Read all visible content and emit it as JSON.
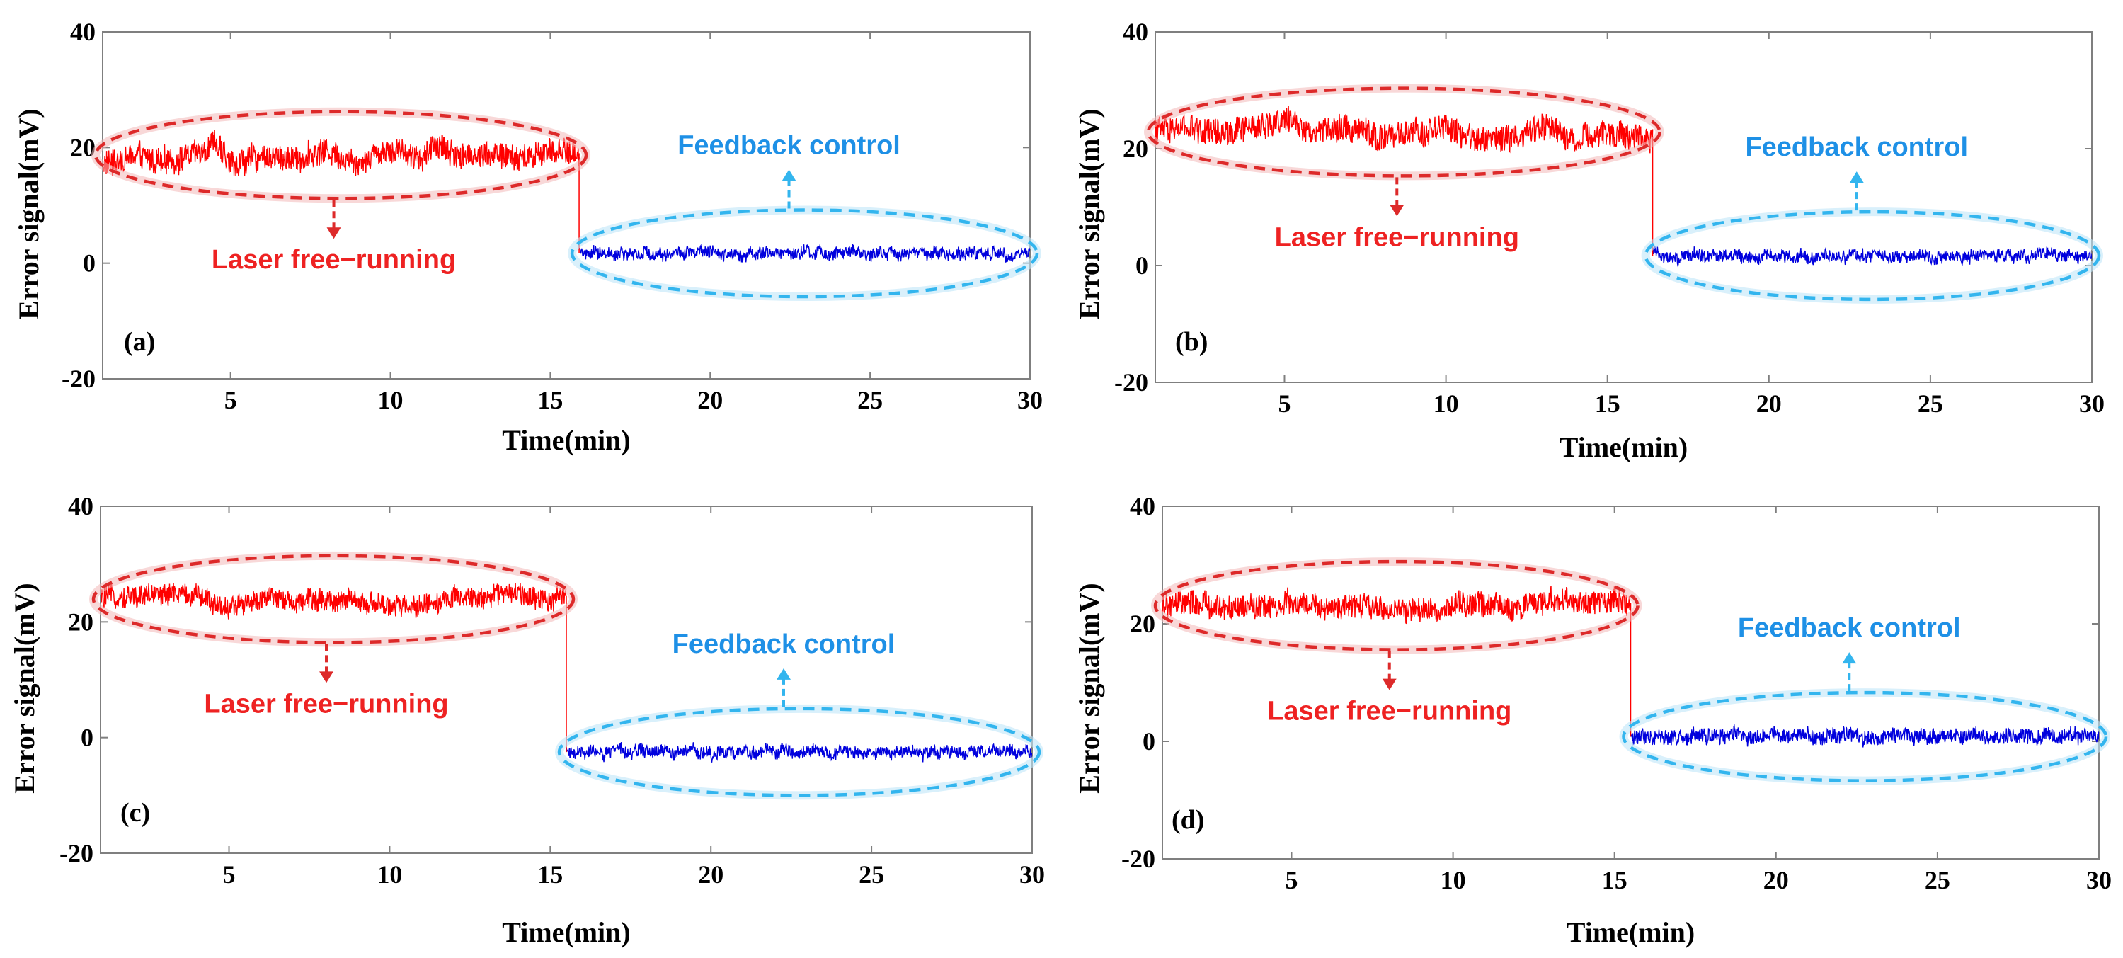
{
  "colors": {
    "free_running_trace": "#ff0000",
    "feedback_trace": "#0000dd",
    "free_running_annotation": "#ee2222",
    "feedback_annotation": "#1e90e6",
    "feedback_ellipse": "#33b5ee",
    "axis": "#7f7f7f"
  },
  "chart_data": [
    {
      "type": "line",
      "panel": "(a)",
      "xlabel": "Time(min)",
      "ylabel": "Error signal(mV)",
      "xlim": [
        1,
        30
      ],
      "ylim": [
        -20,
        40
      ],
      "x_ticks": [
        5,
        10,
        15,
        20,
        25,
        30
      ],
      "y_ticks": [
        -20,
        0,
        20,
        40
      ],
      "x_tick_labels": [
        "5",
        "10",
        "15",
        "20",
        "25",
        "30"
      ],
      "y_tick_labels": [
        "-20",
        "0",
        "20",
        "40"
      ],
      "switch_time": 15.9,
      "series": [
        {
          "name": "Laser free-running",
          "color": "#ff0000",
          "x": [
            1,
            2,
            3,
            4,
            4.5,
            5,
            6,
            7,
            8,
            9,
            10,
            11,
            11.5,
            12,
            13,
            14,
            15,
            15.9
          ],
          "y": [
            17,
            18.5,
            17.5,
            19,
            21,
            17,
            18.5,
            18,
            19.5,
            17.5,
            20,
            18,
            21,
            18.5,
            19,
            18,
            19.5,
            19
          ],
          "noise_amplitude": 2.2
        },
        {
          "name": "Feedback control",
          "color": "#0000dd",
          "x": [
            15.9,
            20,
            25,
            30
          ],
          "y": [
            1.7,
            1.7,
            1.7,
            1.7
          ],
          "noise_amplitude": 1.0
        }
      ],
      "annotations": {
        "free_running_label": "Laser free−running",
        "feedback_label": "Feedback control"
      }
    },
    {
      "type": "line",
      "panel": "(b)",
      "xlabel": "Time(min)",
      "ylabel": "Error signal(mV)",
      "xlim": [
        1,
        30
      ],
      "ylim": [
        -20,
        40
      ],
      "x_ticks": [
        5,
        10,
        15,
        20,
        25,
        30
      ],
      "y_ticks": [
        -20,
        0,
        20,
        40
      ],
      "x_tick_labels": [
        "5",
        "10",
        "15",
        "20",
        "25",
        "30"
      ],
      "y_tick_labels": [
        "-20",
        "0",
        "20",
        "40"
      ],
      "switch_time": 16.4,
      "series": [
        {
          "name": "Laser free-running",
          "color": "#ff0000",
          "x": [
            1,
            2,
            3,
            4,
            5,
            6,
            7,
            8,
            9,
            10,
            11,
            12,
            13,
            14,
            15,
            16.4
          ],
          "y": [
            23,
            23.5,
            22.5,
            23.5,
            25,
            23,
            23.5,
            22,
            22.5,
            23.5,
            21.5,
            22,
            24,
            21.5,
            22.5,
            22
          ],
          "noise_amplitude": 2.2
        },
        {
          "name": "Feedback control",
          "color": "#0000dd",
          "x": [
            16.4,
            20,
            25,
            30
          ],
          "y": [
            1.7,
            1.7,
            1.7,
            1.7
          ],
          "noise_amplitude": 1.0
        }
      ],
      "annotations": {
        "free_running_label": "Laser free−running",
        "feedback_label": "Feedback control"
      }
    },
    {
      "type": "line",
      "panel": "(c)",
      "xlabel": "Time(min)",
      "ylabel": "Error signal(mV)",
      "xlim": [
        1,
        30
      ],
      "ylim": [
        -20,
        40
      ],
      "x_ticks": [
        5,
        10,
        15,
        20,
        25,
        30
      ],
      "y_ticks": [
        -20,
        0,
        20,
        40
      ],
      "x_tick_labels": [
        "5",
        "10",
        "15",
        "20",
        "25",
        "30"
      ],
      "y_tick_labels": [
        "-20",
        "0",
        "20",
        "40"
      ],
      "switch_time": 15.5,
      "series": [
        {
          "name": "Laser free-running",
          "color": "#ff0000",
          "x": [
            1,
            2,
            3,
            4,
            5,
            6,
            7,
            8,
            9,
            10,
            11,
            12,
            13,
            14,
            15,
            15.5
          ],
          "y": [
            24,
            24.5,
            25,
            24.5,
            22.5,
            24,
            23.5,
            24,
            23.5,
            22.5,
            23,
            24,
            24.5,
            25,
            24,
            24.5
          ],
          "noise_amplitude": 1.8
        },
        {
          "name": "Feedback control",
          "color": "#0000dd",
          "x": [
            15.5,
            20,
            25,
            30
          ],
          "y": [
            -2.5,
            -2.5,
            -2.5,
            -2.5
          ],
          "noise_amplitude": 1.0
        }
      ],
      "annotations": {
        "free_running_label": "Laser free−running",
        "feedback_label": "Feedback control"
      }
    },
    {
      "type": "line",
      "panel": "(d)",
      "xlabel": "Time(min)",
      "ylabel": "Error signal(mV)",
      "xlim": [
        1,
        30
      ],
      "ylim": [
        -20,
        40
      ],
      "x_ticks": [
        5,
        10,
        15,
        20,
        25,
        30
      ],
      "y_ticks": [
        -20,
        0,
        20,
        40
      ],
      "x_tick_labels": [
        "5",
        "10",
        "15",
        "20",
        "25",
        "30"
      ],
      "y_tick_labels": [
        "-20",
        "0",
        "20",
        "40"
      ],
      "switch_time": 15.5,
      "series": [
        {
          "name": "Laser free-running",
          "color": "#ff0000",
          "x": [
            1,
            2,
            3,
            4,
            5,
            6,
            7,
            8,
            9,
            10,
            11,
            12,
            13,
            14,
            15,
            15.5
          ],
          "y": [
            23,
            23.5,
            22.5,
            23,
            23.5,
            22.5,
            23,
            22.5,
            22,
            23,
            23.5,
            22.5,
            24,
            23.5,
            24,
            23.5
          ],
          "noise_amplitude": 2.0
        },
        {
          "name": "Feedback control",
          "color": "#0000dd",
          "x": [
            15.5,
            20,
            25,
            30
          ],
          "y": [
            0.8,
            0.8,
            0.8,
            0.8
          ],
          "noise_amplitude": 1.2
        }
      ],
      "annotations": {
        "free_running_label": "Laser free−running",
        "feedback_label": "Feedback control"
      }
    }
  ]
}
